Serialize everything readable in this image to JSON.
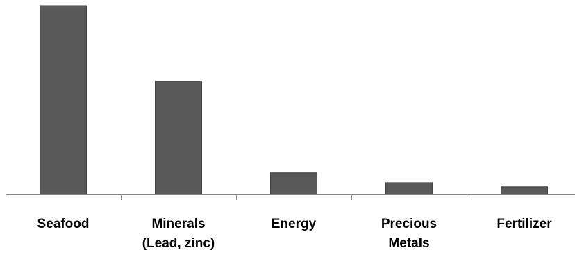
{
  "chart_data": {
    "type": "bar",
    "categories": [
      [
        "Seafood"
      ],
      [
        "Minerals",
        "(Lead, zinc)"
      ],
      [
        "Energy"
      ],
      [
        "Precious",
        "Metals"
      ],
      [
        "Fertilizer"
      ]
    ],
    "values": [
      100,
      60,
      11.5,
      6.3,
      4.1
    ],
    "title": "",
    "xlabel": "",
    "ylabel": "",
    "ylim": [
      0,
      100
    ],
    "grid": false,
    "legend": "none",
    "bar_color": "#595959",
    "bar_edge_color": "#3f3f3f",
    "axis_color": "#868686"
  }
}
